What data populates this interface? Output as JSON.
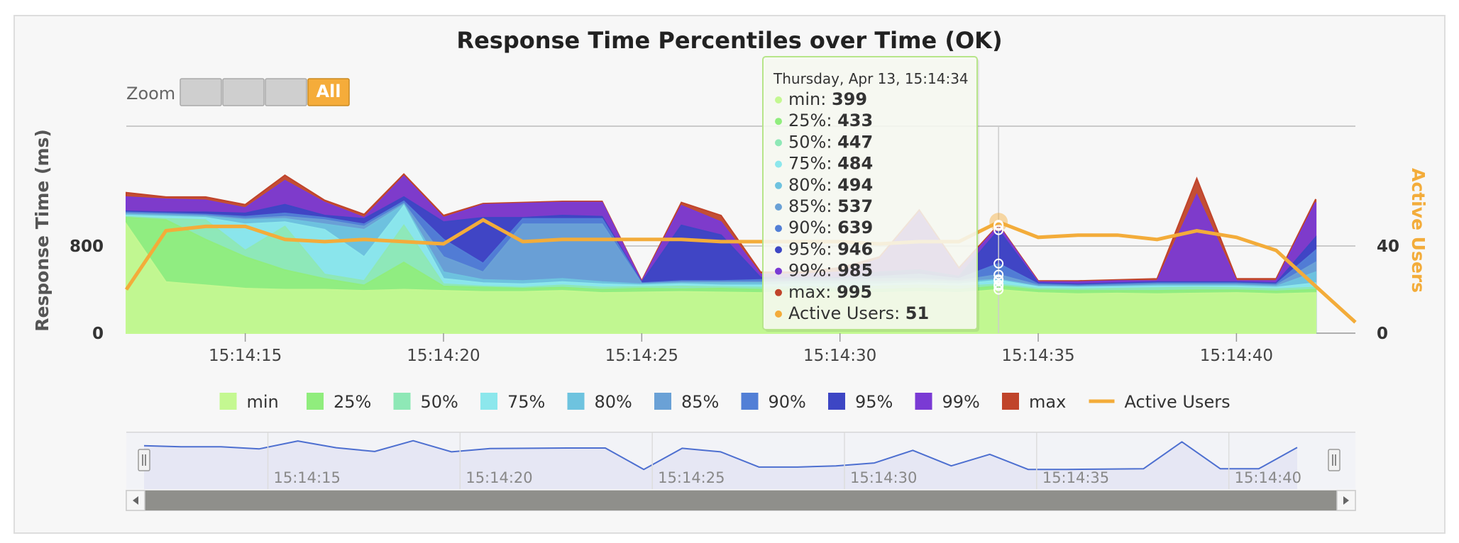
{
  "chart_data": {
    "type": "area",
    "title": "Response Time Percentiles over Time (OK)",
    "ylabel": "Response Time (ms)",
    "y2label": "Active Users",
    "ylim": [
      0,
      1900
    ],
    "y2lim": [
      0,
      95
    ],
    "y_ticks": [
      0,
      800
    ],
    "y2_ticks": [
      0,
      40
    ],
    "x_tick_labels": [
      "15:14:15",
      "15:14:20",
      "15:14:25",
      "15:14:30",
      "15:14:35",
      "15:14:40"
    ],
    "x_start": "15:14:12",
    "x_end": "15:14:43",
    "legend_position": "bottom",
    "grid": true,
    "x": [
      "15:14:12",
      "15:14:13",
      "15:14:14",
      "15:14:15",
      "15:14:16",
      "15:14:17",
      "15:14:18",
      "15:14:19",
      "15:14:20",
      "15:14:21",
      "15:14:22",
      "15:14:23",
      "15:14:24",
      "15:14:25",
      "15:14:26",
      "15:14:27",
      "15:14:28",
      "15:14:29",
      "15:14:30",
      "15:14:31",
      "15:14:32",
      "15:14:33",
      "15:14:34",
      "15:14:35",
      "15:14:36",
      "15:14:37",
      "15:14:38",
      "15:14:39",
      "15:14:40",
      "15:14:41",
      "15:14:42"
    ],
    "series": [
      {
        "name": "min",
        "color": "#c4f891",
        "values": [
          1000,
          470,
          440,
          410,
          400,
          400,
          390,
          400,
          390,
          380,
          380,
          390,
          370,
          375,
          380,
          375,
          370,
          370,
          375,
          370,
          380,
          370,
          399,
          370,
          360,
          365,
          360,
          365,
          370,
          360,
          370
        ]
      },
      {
        "name": "25%",
        "color": "#90ed7d",
        "values": [
          1060,
          1040,
          860,
          700,
          580,
          500,
          440,
          650,
          430,
          420,
          410,
          420,
          400,
          410,
          405,
          410,
          400,
          400,
          405,
          400,
          410,
          400,
          433,
          395,
          390,
          390,
          390,
          395,
          395,
          385,
          400
        ]
      },
      {
        "name": "50%",
        "color": "#8ee8b6",
        "values": [
          1070,
          1050,
          1040,
          760,
          980,
          540,
          480,
          990,
          450,
          430,
          420,
          440,
          420,
          425,
          430,
          425,
          420,
          425,
          420,
          430,
          440,
          430,
          447,
          410,
          405,
          410,
          415,
          420,
          415,
          405,
          420
        ]
      },
      {
        "name": "75%",
        "color": "#8ce7ec",
        "values": [
          1080,
          1070,
          1060,
          1000,
          1020,
          950,
          700,
          1170,
          500,
          460,
          450,
          470,
          450,
          440,
          450,
          440,
          440,
          450,
          450,
          450,
          460,
          450,
          484,
          425,
          420,
          425,
          430,
          430,
          430,
          420,
          460
        ]
      },
      {
        "name": "80%",
        "color": "#6ec3df",
        "values": [
          1090,
          1080,
          1070,
          1040,
          1050,
          1000,
          950,
          1180,
          560,
          490,
          480,
          500,
          470,
          450,
          460,
          460,
          460,
          470,
          470,
          470,
          480,
          470,
          494,
          430,
          425,
          430,
          440,
          440,
          440,
          430,
          560
        ]
      },
      {
        "name": "85%",
        "color": "#6aa1d6",
        "values": [
          1100,
          1090,
          1080,
          1050,
          1070,
          1040,
          980,
          1190,
          700,
          560,
          1000,
          1000,
          1000,
          455,
          470,
          470,
          470,
          480,
          480,
          500,
          500,
          480,
          537,
          440,
          430,
          440,
          450,
          450,
          450,
          440,
          650
        ]
      },
      {
        "name": "90%",
        "color": "#527fd6",
        "values": [
          1110,
          1100,
          1090,
          1070,
          1100,
          1060,
          1000,
          1210,
          860,
          640,
          1050,
          1050,
          1050,
          460,
          480,
          480,
          490,
          500,
          500,
          520,
          540,
          500,
          639,
          450,
          440,
          450,
          460,
          460,
          460,
          450,
          760
        ]
      },
      {
        "name": "95%",
        "color": "#3d46c4",
        "values": [
          1120,
          1110,
          1110,
          1100,
          1180,
          1080,
          1050,
          1250,
          1020,
          1060,
          1060,
          1080,
          1070,
          465,
          990,
          900,
          510,
          510,
          510,
          560,
          580,
          520,
          946,
          460,
          450,
          460,
          470,
          470,
          470,
          460,
          880
        ]
      },
      {
        "name": "99%",
        "color": "#7a3ad4",
        "values": [
          1250,
          1230,
          1220,
          1150,
          1400,
          1200,
          1060,
          1440,
          1060,
          1180,
          1190,
          1200,
          1200,
          470,
          1170,
          1020,
          540,
          540,
          560,
          680,
          1110,
          580,
          985,
          470,
          470,
          480,
          480,
          1270,
          480,
          480,
          1200
        ]
      },
      {
        "name": "max",
        "color": "#c0442a",
        "values": [
          1290,
          1250,
          1250,
          1180,
          1450,
          1220,
          1090,
          1460,
          1080,
          1190,
          1200,
          1210,
          1210,
          480,
          1200,
          1080,
          560,
          560,
          600,
          700,
          1130,
          600,
          995,
          480,
          480,
          490,
          500,
          1420,
          500,
          500,
          1230
        ]
      }
    ],
    "active_users": {
      "name": "Active Users",
      "color": "#f3ac3a",
      "values": [
        20,
        47,
        49,
        49,
        43,
        42,
        43,
        42,
        41,
        52,
        42,
        43,
        43,
        43,
        43,
        42,
        42,
        42,
        42,
        41,
        42,
        42,
        51,
        44,
        45,
        45,
        43,
        47,
        44,
        38,
        5
      ]
    },
    "active_users_x": [
      "15:14:12",
      "15:14:13",
      "15:14:14",
      "15:14:15",
      "15:14:16",
      "15:14:17",
      "15:14:18",
      "15:14:19",
      "15:14:20",
      "15:14:21",
      "15:14:22",
      "15:14:23",
      "15:14:24",
      "15:14:25",
      "15:14:26",
      "15:14:27",
      "15:14:28",
      "15:14:29",
      "15:14:30",
      "15:14:31",
      "15:14:32",
      "15:14:33",
      "15:14:34",
      "15:14:35",
      "15:14:36",
      "15:14:37",
      "15:14:38",
      "15:14:39",
      "15:14:40",
      "15:14:41",
      "15:14:43"
    ],
    "navigator_values": [
      1290,
      1250,
      1250,
      1180,
      1450,
      1220,
      1090,
      1460,
      1080,
      1190,
      1200,
      1210,
      1210,
      480,
      1200,
      1080,
      560,
      560,
      600,
      700,
      1130,
      600,
      995,
      480,
      480,
      490,
      500,
      1420,
      500,
      500,
      1230
    ],
    "tooltip": {
      "header": "Thursday, Apr 13, 15:14:34",
      "x": "15:14:34",
      "rows": [
        {
          "label": "min",
          "value": "399",
          "color": "#c4f891"
        },
        {
          "label": "25%",
          "value": "433",
          "color": "#90ed7d"
        },
        {
          "label": "50%",
          "value": "447",
          "color": "#8ee8b6"
        },
        {
          "label": "75%",
          "value": "484",
          "color": "#8ce7ec"
        },
        {
          "label": "80%",
          "value": "494",
          "color": "#6ec3df"
        },
        {
          "label": "85%",
          "value": "537",
          "color": "#6aa1d6"
        },
        {
          "label": "90%",
          "value": "639",
          "color": "#527fd6"
        },
        {
          "label": "95%",
          "value": "946",
          "color": "#3d46c4"
        },
        {
          "label": "99%",
          "value": "985",
          "color": "#7a3ad4"
        },
        {
          "label": "max",
          "value": "995",
          "color": "#c0442a"
        },
        {
          "label": "Active Users",
          "value": "51",
          "color": "#f3ac3a"
        }
      ]
    }
  },
  "range_selector": {
    "label": "Zoom",
    "buttons": [
      "",
      "",
      "",
      "All"
    ],
    "active": "All",
    "active_color": "#f5ac3a"
  }
}
